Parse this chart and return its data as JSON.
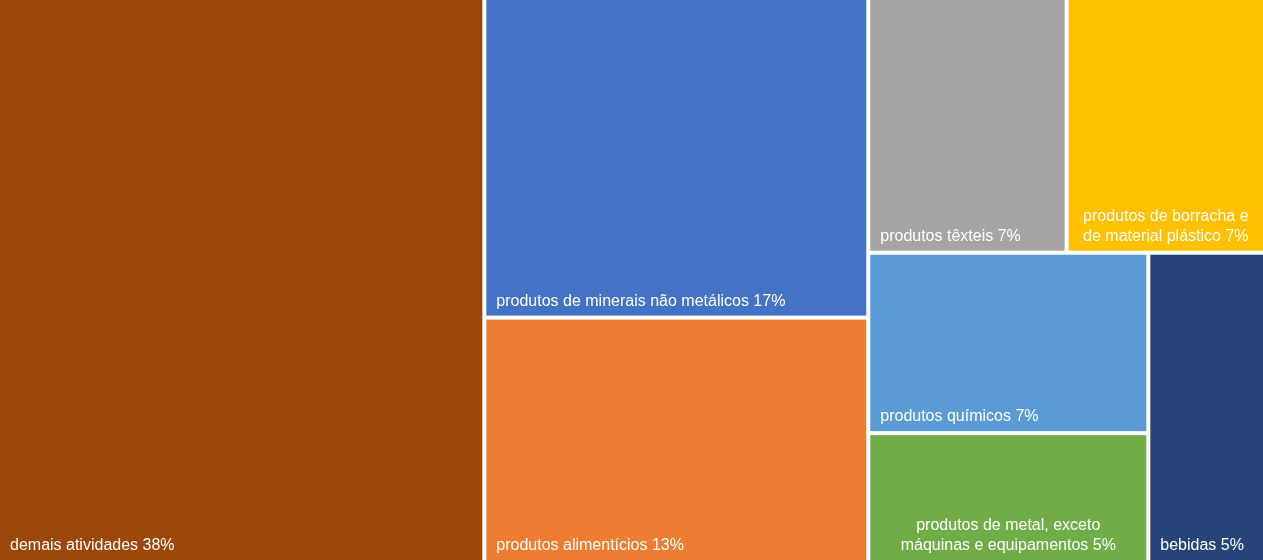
{
  "chart_data": {
    "type": "other",
    "categories": [
      "demais atividades",
      "produtos de minerais não metálicos",
      "produtos alimentícios",
      "produtos têxteis",
      "produtos de borracha e de material plástico",
      "produtos químicos",
      "produtos de metal, exceto máquinas e equipamentos",
      "bebidas"
    ],
    "values": [
      38,
      17,
      13,
      7,
      7,
      7,
      5,
      5
    ],
    "value_labels": [
      "38%",
      "17%",
      "13%",
      "7%",
      "7%",
      "7%",
      "5%",
      "5%"
    ],
    "colors": [
      "#9c460b",
      "#4472c4",
      "#ed7d31",
      "#a5a5a5",
      "#ffc000",
      "#5b9bd5",
      "#70ad47",
      "#264478"
    ]
  }
}
